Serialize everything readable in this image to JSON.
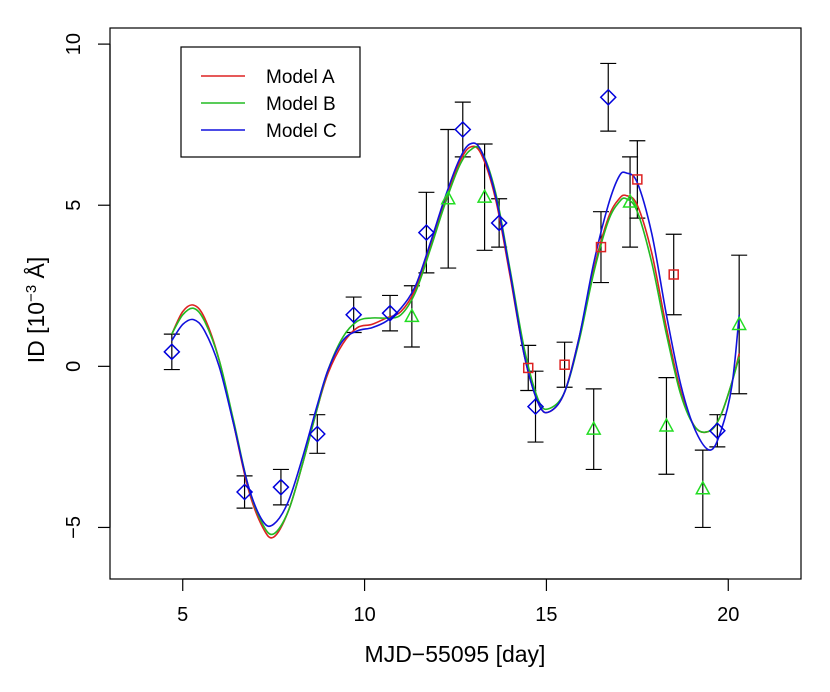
{
  "chart_data": {
    "type": "scatter",
    "xlabel": "MJD−55095 [day]",
    "ylabel": {
      "prefix": "ID [10",
      "sup": "−3",
      "suffix": " Å]"
    },
    "xlim": [
      3.0,
      22.0
    ],
    "ylim": [
      -6.6,
      10.5
    ],
    "xticks": [
      5,
      10,
      15,
      20
    ],
    "yticks": [
      -5,
      0,
      5,
      10
    ],
    "ytick_labels": [
      "−5",
      "0",
      "5",
      "10"
    ],
    "grid": false,
    "legend_position": "top-left",
    "series": [
      {
        "name": "Model A",
        "kind": "line",
        "color": "#dd2222",
        "x": [
          4.7,
          5.0,
          5.3,
          5.6,
          6.0,
          6.4,
          6.8,
          7.2,
          7.5,
          7.9,
          8.3,
          8.7,
          9.0,
          9.4,
          9.8,
          10.2,
          10.6,
          11.0,
          11.4,
          11.8,
          12.2,
          12.6,
          12.9,
          13.2,
          13.6,
          14.0,
          14.4,
          14.8,
          15.1,
          15.5,
          15.9,
          16.3,
          16.7,
          17.0,
          17.2,
          17.5,
          17.9,
          18.3,
          18.7,
          19.1,
          19.5,
          19.8,
          20.1,
          20.3
        ],
        "y": [
          1.0,
          1.7,
          1.9,
          1.5,
          0.2,
          -1.8,
          -3.8,
          -5.0,
          -5.3,
          -4.5,
          -3.0,
          -1.3,
          -0.2,
          0.7,
          1.2,
          1.3,
          1.5,
          1.7,
          2.4,
          3.7,
          5.1,
          6.3,
          6.8,
          6.6,
          5.2,
          2.8,
          0.3,
          -1.2,
          -1.4,
          -0.8,
          0.9,
          3.0,
          4.6,
          5.2,
          5.3,
          5.0,
          3.5,
          1.2,
          -0.8,
          -1.9,
          -2.0,
          -1.5,
          -0.5,
          0.4
        ]
      },
      {
        "name": "Model B",
        "kind": "line",
        "color": "#22bb22",
        "x": [
          4.7,
          5.0,
          5.3,
          5.6,
          6.0,
          6.4,
          6.8,
          7.2,
          7.5,
          7.9,
          8.3,
          8.7,
          9.0,
          9.4,
          9.8,
          10.2,
          10.6,
          11.0,
          11.4,
          11.8,
          12.2,
          12.6,
          12.9,
          13.2,
          13.6,
          14.0,
          14.4,
          14.8,
          15.1,
          15.5,
          15.9,
          16.3,
          16.7,
          17.0,
          17.2,
          17.5,
          17.9,
          18.3,
          18.7,
          19.1,
          19.5,
          19.8,
          20.1,
          20.3
        ],
        "y": [
          1.0,
          1.6,
          1.8,
          1.4,
          0.2,
          -1.7,
          -3.7,
          -4.9,
          -5.2,
          -4.5,
          -3.0,
          -1.3,
          -0.1,
          0.9,
          1.4,
          1.5,
          1.5,
          1.6,
          2.3,
          3.6,
          5.0,
          6.2,
          6.7,
          6.7,
          5.4,
          3.0,
          0.5,
          -1.1,
          -1.3,
          -0.8,
          0.8,
          2.9,
          4.5,
          5.1,
          5.2,
          4.8,
          3.2,
          1.0,
          -0.9,
          -1.9,
          -2.0,
          -1.5,
          -0.5,
          0.3
        ]
      },
      {
        "name": "Model C",
        "kind": "line",
        "color": "#1111dd",
        "x": [
          4.7,
          5.0,
          5.3,
          5.6,
          6.0,
          6.4,
          6.8,
          7.2,
          7.5,
          7.9,
          8.3,
          8.7,
          9.0,
          9.4,
          9.8,
          10.2,
          10.6,
          11.0,
          11.4,
          11.8,
          12.2,
          12.6,
          12.9,
          13.2,
          13.6,
          14.0,
          14.4,
          14.8,
          15.1,
          15.5,
          15.9,
          16.3,
          16.7,
          17.0,
          17.2,
          17.5,
          17.9,
          18.3,
          18.7,
          19.1,
          19.5,
          19.8,
          20.1,
          20.3
        ],
        "y": [
          0.8,
          1.3,
          1.45,
          1.1,
          0.0,
          -1.8,
          -3.7,
          -4.8,
          -4.9,
          -4.2,
          -2.8,
          -1.2,
          -0.1,
          0.8,
          1.1,
          1.2,
          1.4,
          1.8,
          2.5,
          3.8,
          5.2,
          6.4,
          6.9,
          6.7,
          5.3,
          2.9,
          0.3,
          -1.2,
          -1.4,
          -0.8,
          0.9,
          3.2,
          5.0,
          5.9,
          6.0,
          5.7,
          4.1,
          1.6,
          -0.6,
          -2.0,
          -2.6,
          -2.0,
          -0.6,
          1.6
        ]
      },
      {
        "name": "diamonds",
        "kind": "points",
        "marker": "diamond",
        "color": "#0000dd",
        "x": [
          4.7,
          6.7,
          7.7,
          8.7,
          9.7,
          10.7,
          11.7,
          12.7,
          13.7,
          14.7,
          16.7,
          19.7
        ],
        "y": [
          0.45,
          -3.9,
          -3.75,
          -2.1,
          1.6,
          1.65,
          4.15,
          7.35,
          4.45,
          -1.25,
          8.35,
          -2.0
        ],
        "err": [
          0.55,
          0.5,
          0.55,
          0.6,
          0.55,
          0.55,
          1.25,
          0.85,
          0.75,
          1.1,
          1.05,
          0.5
        ]
      },
      {
        "name": "triangles",
        "kind": "points",
        "marker": "triangle",
        "color": "#22dd22",
        "x": [
          11.3,
          12.3,
          13.3,
          16.3,
          17.3,
          18.3,
          19.3,
          20.3
        ],
        "y": [
          1.55,
          5.2,
          5.25,
          -1.95,
          5.1,
          -1.85,
          -3.8,
          1.3
        ],
        "err": [
          0.95,
          2.15,
          1.65,
          1.25,
          1.4,
          1.5,
          1.2,
          2.15
        ]
      },
      {
        "name": "squares",
        "kind": "points",
        "marker": "square",
        "color": "#dd2222",
        "x": [
          14.5,
          15.5,
          16.5,
          17.5,
          18.5
        ],
        "y": [
          -0.05,
          0.05,
          3.7,
          5.8,
          2.85
        ],
        "err": [
          0.7,
          0.7,
          1.1,
          1.2,
          1.25
        ]
      }
    ]
  }
}
